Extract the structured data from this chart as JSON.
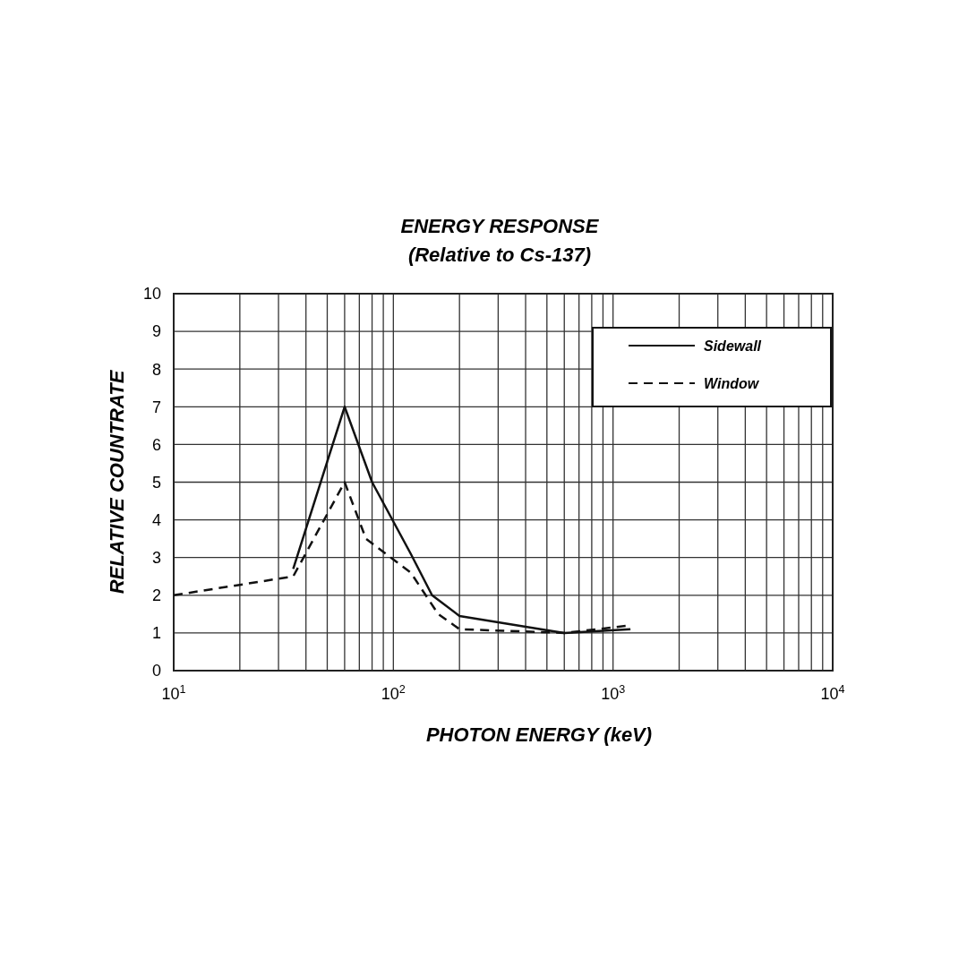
{
  "chart_data": {
    "type": "line",
    "title": "ENERGY RESPONSE",
    "subtitle": "(Relative to Cs-137)",
    "xlabel": "PHOTON ENERGY (keV)",
    "ylabel": "RELATIVE COUNTRATE",
    "log": "x",
    "xlim": [
      10,
      10000
    ],
    "ylim": [
      0,
      10
    ],
    "xticks": [
      {
        "value": 10,
        "label": "10$^{1}$"
      },
      {
        "value": 100,
        "label": "10$^{2}$"
      },
      {
        "value": 1000,
        "label": "10$^{3}$"
      },
      {
        "value": 10000,
        "label": "10$^{4}$"
      }
    ],
    "yticks": [
      0,
      1,
      2,
      3,
      4,
      5,
      6,
      7,
      8,
      9,
      10
    ],
    "grid": true,
    "legend": "top right",
    "series": [
      {
        "name": "Sidewall",
        "color": "#111111",
        "line_style": "solid",
        "x": [
          35,
          60,
          80,
          120,
          150,
          200,
          600,
          1200
        ],
        "values": [
          2.7,
          7,
          5,
          3.1,
          2,
          1.45,
          1,
          1.1
        ]
      },
      {
        "name": "Window",
        "color": "#111111",
        "line_style": "dashed",
        "x": [
          10,
          35,
          60,
          75,
          120,
          160,
          200,
          600,
          1200
        ],
        "values": [
          2,
          2.5,
          5,
          3.5,
          2.6,
          1.5,
          1.1,
          1,
          1.2
        ]
      }
    ]
  }
}
